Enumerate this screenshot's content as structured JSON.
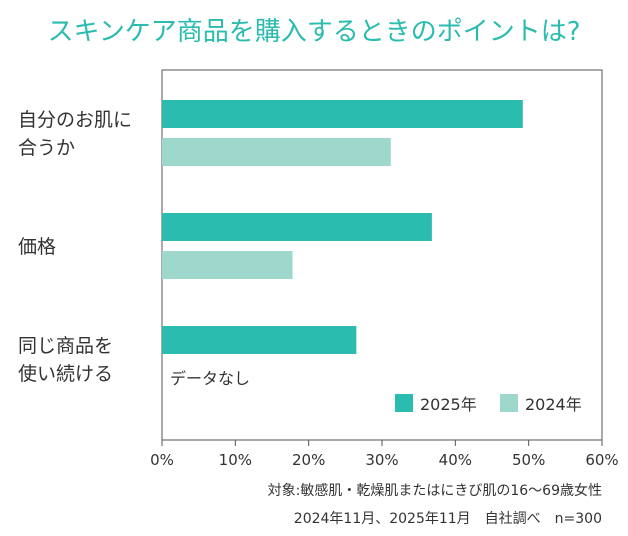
{
  "chart_data": {
    "type": "bar",
    "orientation": "horizontal",
    "title": "スキンケア商品を購入するときのポイントは?",
    "categories": [
      [
        "自分のお肌に",
        "合うか"
      ],
      [
        "価格"
      ],
      [
        "同じ商品を",
        "使い続ける"
      ]
    ],
    "series": [
      {
        "name": "2025年",
        "color": "#2bbcb0",
        "values": [
          49.2,
          36.8,
          26.5
        ]
      },
      {
        "name": "2024年",
        "color": "#9ed8cd",
        "values": [
          31.2,
          17.8,
          null
        ]
      }
    ],
    "missing_label": "データなし",
    "x_ticks": [
      "0%",
      "10%",
      "20%",
      "30%",
      "40%",
      "50%",
      "60%"
    ],
    "xlim": [
      0,
      60
    ],
    "grid": false,
    "legend_position": "bottom-right",
    "notes": [
      "対象:敏感肌・乾燥肌またはにきび肌の16〜69歳女性",
      "2024年11月、2025年11月　自社調べ　n=300"
    ]
  }
}
